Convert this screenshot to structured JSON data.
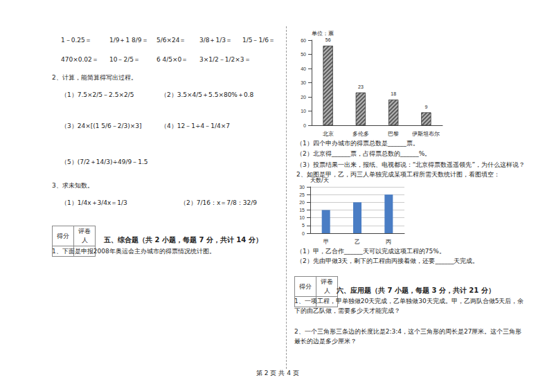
{
  "oral": [
    [
      "1－0.25＝",
      "1/9＋1 8/9＝",
      "5/6×24＝",
      "3/8＋1/3＝",
      "1/5－1/6＝"
    ],
    [
      "470×0.02＝",
      "10－2/5＝",
      "6 4/5×0＝",
      "3×1/2－1/2×3＝"
    ]
  ],
  "section2": {
    "title": "2、计算，能简算得写出过程。",
    "items": [
      "（1）7.5×2/5－2.5×2/5",
      "（2）3.5×4/5＋5.5×80%＋0.8",
      "（3）24×[(1 5/6－2/3)×3]",
      "（4）12－1÷4－1/4×7",
      "（5）(7/2＋14/3)÷49/9－1.5"
    ]
  },
  "section3": {
    "title": "3、求未知数。",
    "items": [
      "（1）1/4x＋3/4x＝1/3",
      "（2）7/16：x＝7/8：32/9"
    ]
  },
  "score_box": [
    "得分",
    "评卷人"
  ],
  "part5": {
    "title": "五、综合题（共 2 小题，每题 7 分，共计 14 分）",
    "q1": "1、下面是申报2008年奥运会主办城市的得票情况统计图。",
    "q1_items": [
      "（1）四个申办城市的得票总数是______票。",
      "（2）北京得______票，占得票总数的______%。",
      "（3）投票结果一出来，报纸、电视都说：“北京得票数遥遥领先”，为什么这样说？"
    ],
    "q2": "2、如图是甲，乙，丙三人单独完成某项工程所需天数统计图，看图填空：",
    "q2_items": [
      "（1）甲，乙合作______天可以完成这项工程的75%。",
      "（2）先由甲做3天，剩下的工程由丙接着做，还要______天完成。"
    ]
  },
  "part6": {
    "title": "六、应用题（共 7 小题，每题 3 分，共计 21 分）",
    "items": [
      "1、一项工程，甲单独做20天完成，乙单独做30天完成。甲，乙两队合做5天后，余下的由乙队做，需要多少天才能完成？",
      "2、一个三角形三条边的长度比是2:3:4，这个三角形的周长是27厘米。这个三角形最长的边是多少厘米？"
    ]
  },
  "footer": "第 2 页 共 4 页",
  "chart_data": [
    {
      "type": "bar",
      "y_label": "单位：票",
      "categories": [
        "北京",
        "多伦多",
        "巴黎",
        "伊斯坦布尔"
      ],
      "values": [
        56,
        23,
        18,
        9
      ],
      "color": "#5a5a5a",
      "ylim": [
        0,
        60
      ],
      "yticks": [
        0,
        10,
        20,
        30,
        40,
        50,
        60
      ],
      "grid": false,
      "data_labels": true
    },
    {
      "type": "bar",
      "y_label": "天数/天",
      "categories": [
        "甲",
        "乙",
        "丙"
      ],
      "values": [
        15,
        20,
        25
      ],
      "color": "#4a7dc4",
      "ylim": [
        0,
        30
      ],
      "yticks": [
        0,
        5,
        10,
        15,
        20,
        25,
        30
      ],
      "grid": true
    }
  ]
}
